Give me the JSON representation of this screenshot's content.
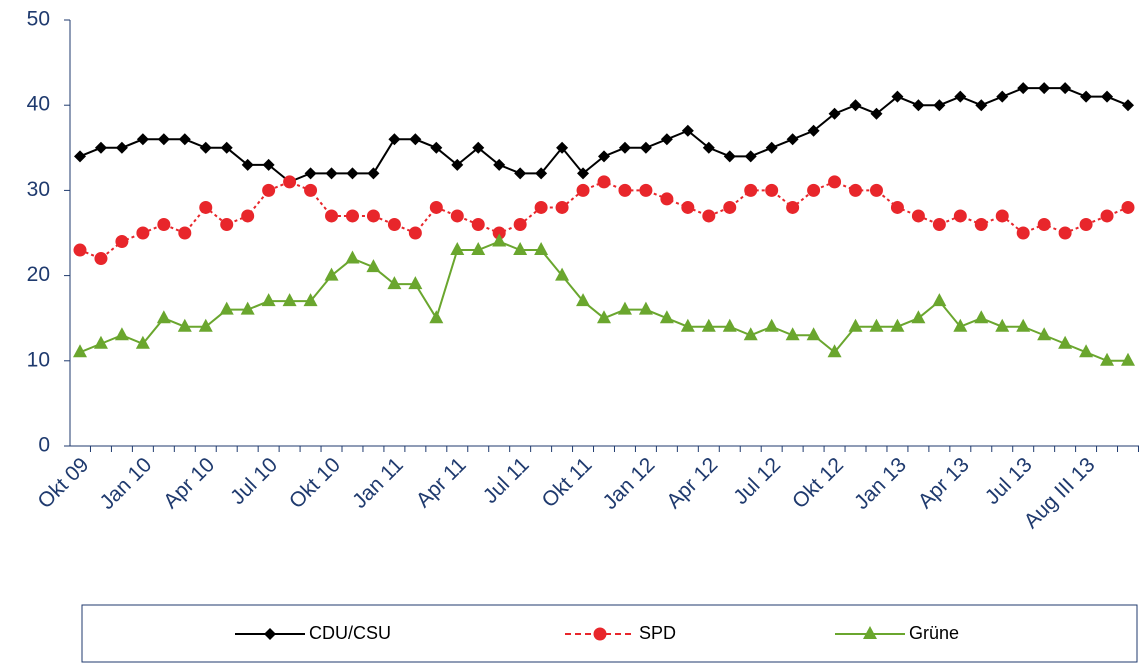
{
  "chart_data": {
    "type": "line",
    "categories": [
      "Okt 09",
      null,
      null,
      "Jan 10",
      null,
      null,
      "Apr 10",
      null,
      null,
      "Jul 10",
      null,
      null,
      "Okt 10",
      null,
      null,
      "Jan 11",
      null,
      null,
      "Apr 11",
      null,
      null,
      "Jul 11",
      null,
      null,
      "Okt 11",
      null,
      null,
      "Jan 12",
      null,
      null,
      "Apr 12",
      null,
      null,
      "Jul 12",
      null,
      null,
      "Okt 12",
      null,
      null,
      "Jan 13",
      null,
      null,
      "Apr 13",
      null,
      null,
      "Jul 13",
      null,
      null,
      "Aug III 13",
      null,
      null
    ],
    "series": [
      {
        "name": "CDU/CSU",
        "color": "#000000",
        "marker": "diamond",
        "values": [
          34,
          35,
          35,
          36,
          36,
          36,
          35,
          35,
          33,
          33,
          31,
          32,
          32,
          32,
          32,
          36,
          36,
          35,
          33,
          35,
          33,
          32,
          32,
          35,
          32,
          34,
          35,
          35,
          36,
          37,
          35,
          34,
          34,
          35,
          36,
          37,
          39,
          40,
          39,
          41,
          40,
          40,
          41,
          40,
          41,
          42,
          42,
          42,
          41,
          41,
          40
        ]
      },
      {
        "name": "SPD",
        "color": "#e8262b",
        "marker": "circle",
        "dashed": true,
        "values": [
          23,
          22,
          24,
          25,
          26,
          25,
          28,
          26,
          27,
          30,
          31,
          30,
          27,
          27,
          27,
          26,
          25,
          28,
          27,
          26,
          25,
          26,
          28,
          28,
          30,
          31,
          30,
          30,
          29,
          28,
          27,
          28,
          30,
          30,
          28,
          30,
          31,
          30,
          30,
          28,
          27,
          26,
          27,
          26,
          27,
          25,
          26,
          25,
          26,
          27,
          28
        ]
      },
      {
        "name": "Grüne",
        "color": "#6aa62e",
        "marker": "triangle",
        "values": [
          11,
          12,
          13,
          12,
          15,
          14,
          14,
          16,
          16,
          17,
          17,
          17,
          20,
          22,
          21,
          19,
          19,
          15,
          23,
          23,
          24,
          23,
          23,
          20,
          17,
          15,
          16,
          16,
          15,
          14,
          14,
          14,
          13,
          14,
          13,
          13,
          11,
          14,
          14,
          14,
          15,
          17,
          14,
          15,
          14,
          14,
          13,
          12,
          11,
          10,
          10
        ]
      }
    ],
    "ylim": [
      0,
      50
    ],
    "yticks": [
      0,
      10,
      20,
      30,
      40,
      50
    ],
    "grid": false,
    "legend": "bottom"
  }
}
